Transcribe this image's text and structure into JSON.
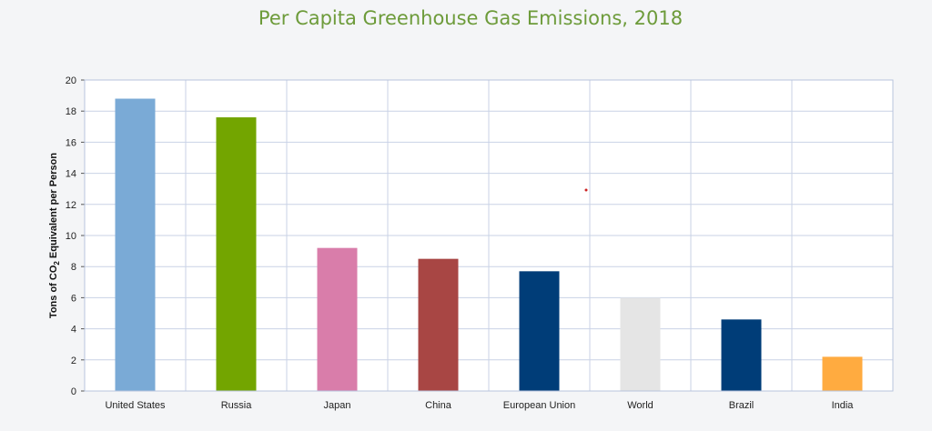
{
  "chart_data": {
    "type": "bar",
    "title": "Per Capita Greenhouse Gas Emissions, 2018",
    "ylabel": "Tons of CO2 Equivalent per Person",
    "ylabel_parts": {
      "before": "Tons of CO",
      "sub": "2",
      "after": " Equivalent per Person"
    },
    "xlabel": "",
    "ylim": [
      0,
      20
    ],
    "yticks": [
      0,
      2,
      4,
      6,
      8,
      10,
      12,
      14,
      16,
      18,
      20
    ],
    "grid": true,
    "categories": [
      "United States",
      "Russia",
      "Japan",
      "China",
      "European Union",
      "World",
      "Brazil",
      "India"
    ],
    "values": [
      18.8,
      17.6,
      9.2,
      8.5,
      7.7,
      6.0,
      4.6,
      2.2
    ],
    "colors": [
      "#7aaad6",
      "#73a500",
      "#d97daa",
      "#a84644",
      "#003d78",
      "#e5e5e5",
      "#003d78",
      "#ffab40"
    ]
  }
}
